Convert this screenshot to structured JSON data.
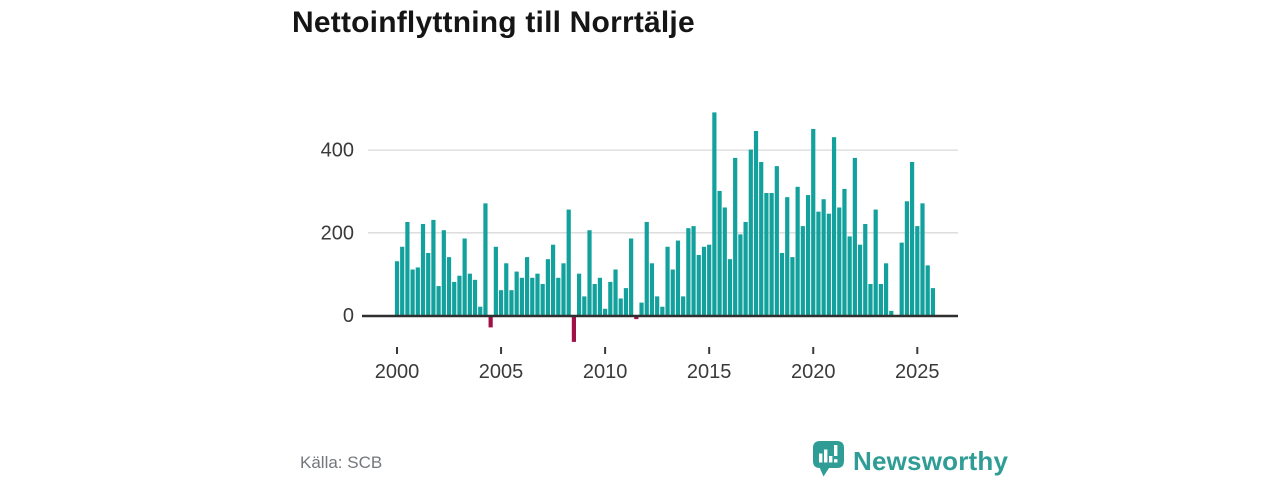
{
  "title": "Nettoinflyttning till Norrtälje",
  "source": "Källa: SCB",
  "branding": {
    "name": "Newsworthy",
    "logo_icon": "speech-bubble-bar-chart-icon"
  },
  "colors": {
    "bar_positive": "#12a19c",
    "bar_negative": "#a01147",
    "axis": "#2f2f2f",
    "grid": "#dadada",
    "tick_label": "#3a3a3a",
    "source_text": "#74777c",
    "brand_teal": "#2f9d95",
    "title_text": "#151515"
  },
  "chart_data": {
    "type": "bar",
    "title": "Nettoinflyttning till Norrtälje",
    "xlabel": "",
    "ylabel": "",
    "period": "quarterly",
    "start_year": 2000,
    "quarters_per_year": 4,
    "x_tick_labels": [
      "2000",
      "2005",
      "2010",
      "2015",
      "2020",
      "2025"
    ],
    "y_ticks": [
      0,
      200,
      400
    ],
    "ylim": [
      -80,
      510
    ],
    "grid": true,
    "legend": "none",
    "negative_highlight": "negative quarters drawn in dark red",
    "series": [
      {
        "name": "Nettoinflyttning",
        "values": [
          130,
          165,
          225,
          110,
          115,
          220,
          150,
          230,
          70,
          205,
          140,
          80,
          95,
          185,
          100,
          85,
          20,
          270,
          -30,
          165,
          60,
          125,
          60,
          105,
          90,
          140,
          90,
          100,
          75,
          135,
          170,
          90,
          125,
          255,
          -65,
          100,
          45,
          205,
          75,
          90,
          15,
          80,
          110,
          40,
          65,
          185,
          -10,
          30,
          225,
          125,
          45,
          20,
          165,
          110,
          180,
          45,
          210,
          215,
          145,
          165,
          170,
          490,
          300,
          260,
          135,
          380,
          195,
          225,
          400,
          445,
          370,
          295,
          295,
          360,
          150,
          285,
          140,
          310,
          215,
          290,
          450,
          250,
          280,
          245,
          430,
          260,
          305,
          190,
          380,
          170,
          220,
          75,
          255,
          75,
          125,
          10,
          0,
          175,
          275,
          370,
          215,
          270,
          120,
          65
        ]
      }
    ]
  }
}
